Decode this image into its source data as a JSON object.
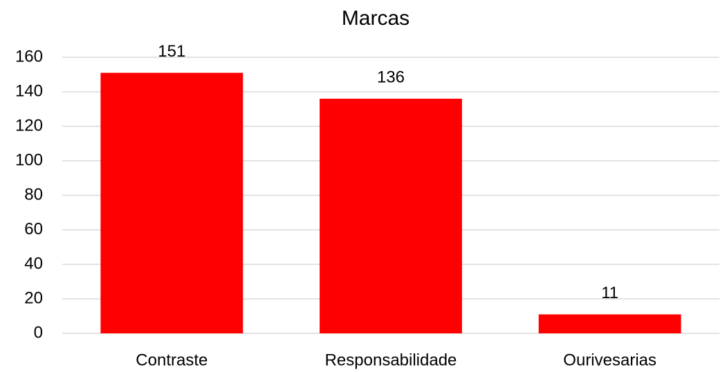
{
  "chart_data": {
    "type": "bar",
    "title": "Marcas",
    "categories": [
      "Contraste",
      "Responsabilidade",
      "Ourivesarias"
    ],
    "values": [
      151,
      136,
      11
    ],
    "color": "#ff0000",
    "ylim": [
      0,
      160
    ],
    "yticks": [
      0,
      20,
      40,
      60,
      80,
      100,
      120,
      140,
      160
    ],
    "grid": true,
    "data_labels": true
  }
}
